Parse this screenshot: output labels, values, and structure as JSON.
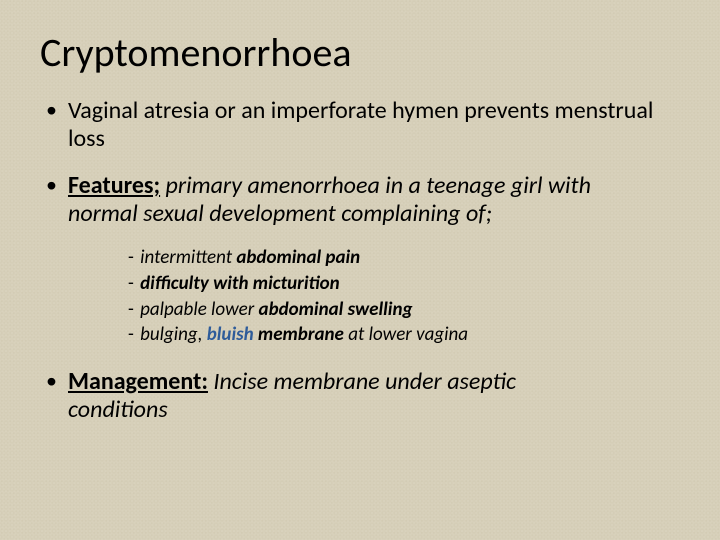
{
  "title": "Cryptomenorrhoea",
  "bullets": {
    "b1": "Vaginal atresia or an imperforate hymen prevents menstrual loss",
    "features_label": "Features;",
    "features_text_a": " primary amenorrhoea in a teenage girl with",
    "features_text_b": "normal sexual development complaining of;",
    "management_label": "Management:",
    "management_text_a": " Incise membrane under aseptic",
    "management_text_b": "conditions"
  },
  "sub": {
    "s1_a": "intermittent ",
    "s1_b": "abdominal pain",
    "s2": "difficulty with micturition",
    "s3_a": "palpable lower ",
    "s3_b": "abdominal swelling",
    "s4_a": "bulging, ",
    "s4_blue": "bluish",
    "s4_b": " membrane ",
    "s4_c": "at lower vagina"
  },
  "colors": {
    "text": "#000000",
    "bluish": "#2e5c9a",
    "background": "#d9d2bd"
  },
  "typography": {
    "title_fontsize": 40,
    "bullet_fontsize": 24,
    "sub_fontsize": 19,
    "font_family": "Calibri"
  }
}
